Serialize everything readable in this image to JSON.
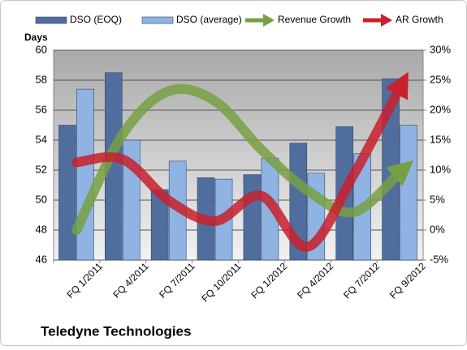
{
  "chart_data": {
    "type": "bar-line",
    "title": "Teledyne Technologies",
    "y_axis_label": "Days",
    "categories": [
      "FQ 1/2011",
      "FQ 4/2011",
      "FQ 7/2011",
      "FQ 10/2011",
      "FQ 1/2012",
      "FQ 4/2012",
      "FQ 7/2012",
      "FQ 9/2012"
    ],
    "series": [
      {
        "name": "DSO (EOQ)",
        "type": "bar",
        "color": "#4f6e9e",
        "values": [
          55,
          58.5,
          50.7,
          51.5,
          51.7,
          53.8,
          54.9,
          58.1
        ]
      },
      {
        "name": "DSO (average)",
        "type": "bar",
        "color": "#8fb4e3",
        "values": [
          57.4,
          54,
          52.6,
          51.4,
          52.8,
          51.8,
          53.1,
          55
        ]
      },
      {
        "name": "Revenue Growth",
        "type": "line",
        "axis": "y2",
        "color": "#77a043",
        "values": [
          0,
          16,
          23.2,
          21.5,
          13.4,
          6.6,
          3,
          9.7
        ]
      },
      {
        "name": "AR Growth",
        "type": "line",
        "axis": "y2",
        "color": "#c8202c",
        "values": [
          11.3,
          11.8,
          4.9,
          1.5,
          5.7,
          -2.8,
          9.3,
          23.8
        ]
      }
    ],
    "ylim": [
      46,
      60
    ],
    "yticks": [
      46,
      48,
      50,
      52,
      54,
      56,
      58,
      60
    ],
    "y2lim": [
      -5,
      30
    ],
    "y2ticks": [
      {
        "value": -5,
        "label": "-5%"
      },
      {
        "value": 0,
        "label": "0%"
      },
      {
        "value": 5,
        "label": "5%"
      },
      {
        "value": 10,
        "label": "10%"
      },
      {
        "value": 15,
        "label": "15%"
      },
      {
        "value": 20,
        "label": "20%"
      },
      {
        "value": 25,
        "label": "25%"
      },
      {
        "value": 30,
        "label": "30%"
      }
    ],
    "grid": true,
    "legend": "top"
  }
}
